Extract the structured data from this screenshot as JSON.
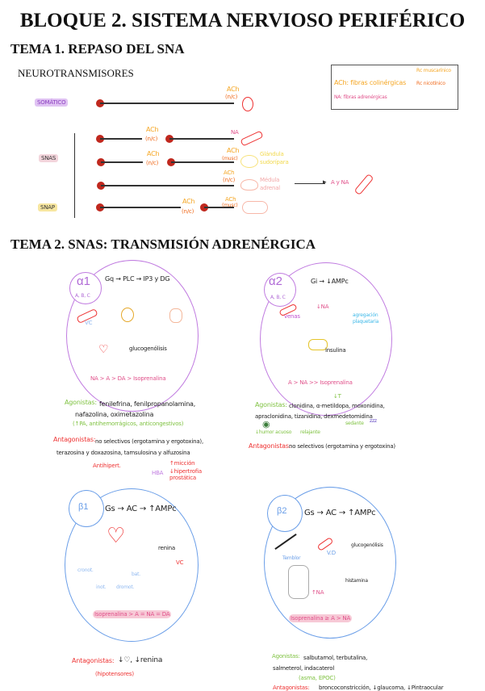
{
  "title": "BLOQUE 2. SISTEMA NERVIOSO PERIFÉRICO",
  "tema1": {
    "heading": "TEMA 1. REPASO DEL SNA",
    "subheading": "NEUROTRANSMISORES",
    "legend": {
      "ach": "ACh: fibras colinérgicas",
      "rc_musc": "Rc muscarínico",
      "rc_nic": "Rc nicotínico",
      "na": "NA: fibras adrenérgicas"
    },
    "rows": {
      "somatico": {
        "label": "SOMÁTICO",
        "nt": "ACh",
        "rc": "(n/c)"
      },
      "snas_label": "SNAS",
      "snas1": {
        "pre_nt": "ACh",
        "pre_rc": "(n/c)",
        "post_nt": "NA"
      },
      "snas2": {
        "pre_nt": "ACh",
        "pre_rc": "(n/c)",
        "post_nt": "ACh",
        "post_rc": "(musc)",
        "target": "Glándula sudorípara"
      },
      "snas3": {
        "nt": "ACh",
        "rc": "(n/c)",
        "target": "Médula adrenal",
        "product": "A y NA"
      },
      "snap": {
        "label": "SNAP",
        "pre_nt": "ACh",
        "pre_rc": "(n/c)",
        "post_nt": "ACh",
        "post_rc": "(musc)"
      }
    }
  },
  "tema2": {
    "heading": "TEMA 2. SNAS: TRANSMISIÓN ADRENÉRGICA",
    "alpha1": {
      "name": "α1",
      "subtypes": "A, B, C",
      "pathway": "Gq → PLC → IP3 y DG",
      "vc": "VC",
      "glyco": "glucogenólisis",
      "potency": "NA > A > DA > Isoprenalina",
      "agonists_label": "Agonistas:",
      "agonists": "fenilefrina, fenilpropanolamina, nafazolina, oximetazolina",
      "agonists_use": "(↑PA, antihemorrágicos, anticongestivos)",
      "antagonists_label": "Antagonistas:",
      "antagonists": "no selectivos (ergotamina y ergotoxina), terazosina y doxazosina, tamsulosina y alfuzosina",
      "note_antihip": "Antihipert.",
      "note_hba": "HBA",
      "note_miccion": "↑micción",
      "note_hiper": "↓hipertrofia prostática"
    },
    "alpha2": {
      "name": "α2",
      "subtypes": "A, B, C",
      "pathway": "Gi → ↓AMPc",
      "venas": "venas",
      "na": "↓NA",
      "aggreg": "agregación plaquetaria",
      "insulina": "insulina",
      "potency": "A > NA >> Isoprenalina",
      "t_down": "↓T",
      "agonists_label": "Agonistas:",
      "agonists": "clonidina, α-metildopa, moxonidina, apraclonidina, tizanidina, dexmedetomidina",
      "eye_note": "↓humor acuoso",
      "relax_note": "relajante",
      "sedante": "sedante",
      "zz": "zzz",
      "antagonists_label": "Antagonistas:",
      "antagonists": "no selectivos (ergotamina y ergotoxina)"
    },
    "beta1": {
      "name": "β1",
      "pathway": "Gs → AC → ↑AMPc",
      "renina": "renina",
      "vc": "VC",
      "heart": [
        "cronot.",
        "inot.",
        "dromot.",
        "bat."
      ],
      "potency": "Isoprenalina > A = NA = DA",
      "antagonists_label": "Antagonistas:",
      "antagonists": "↓♡, ↓renina",
      "antagonists_use": "(hipotensores)"
    },
    "beta2": {
      "name": "β2",
      "pathway": "Gs → AC → ↑AMPc",
      "temblor": "Temblor",
      "vd": "V.D",
      "glyco": "glucogenólisis",
      "histamina": "histamina",
      "na": "↑NA",
      "potency": "Isoprenalina ≥ A > NA",
      "agonists_label": "Agonistas:",
      "agonists": "salbutamol, terbutalina, salmeterol, indacaterol",
      "agonists_use": "(asma, EPOC)",
      "antagonists_label": "Antagonistas:",
      "antagonists": "broncoconstricción, ↓glaucoma, ↓Pintraocular"
    }
  }
}
